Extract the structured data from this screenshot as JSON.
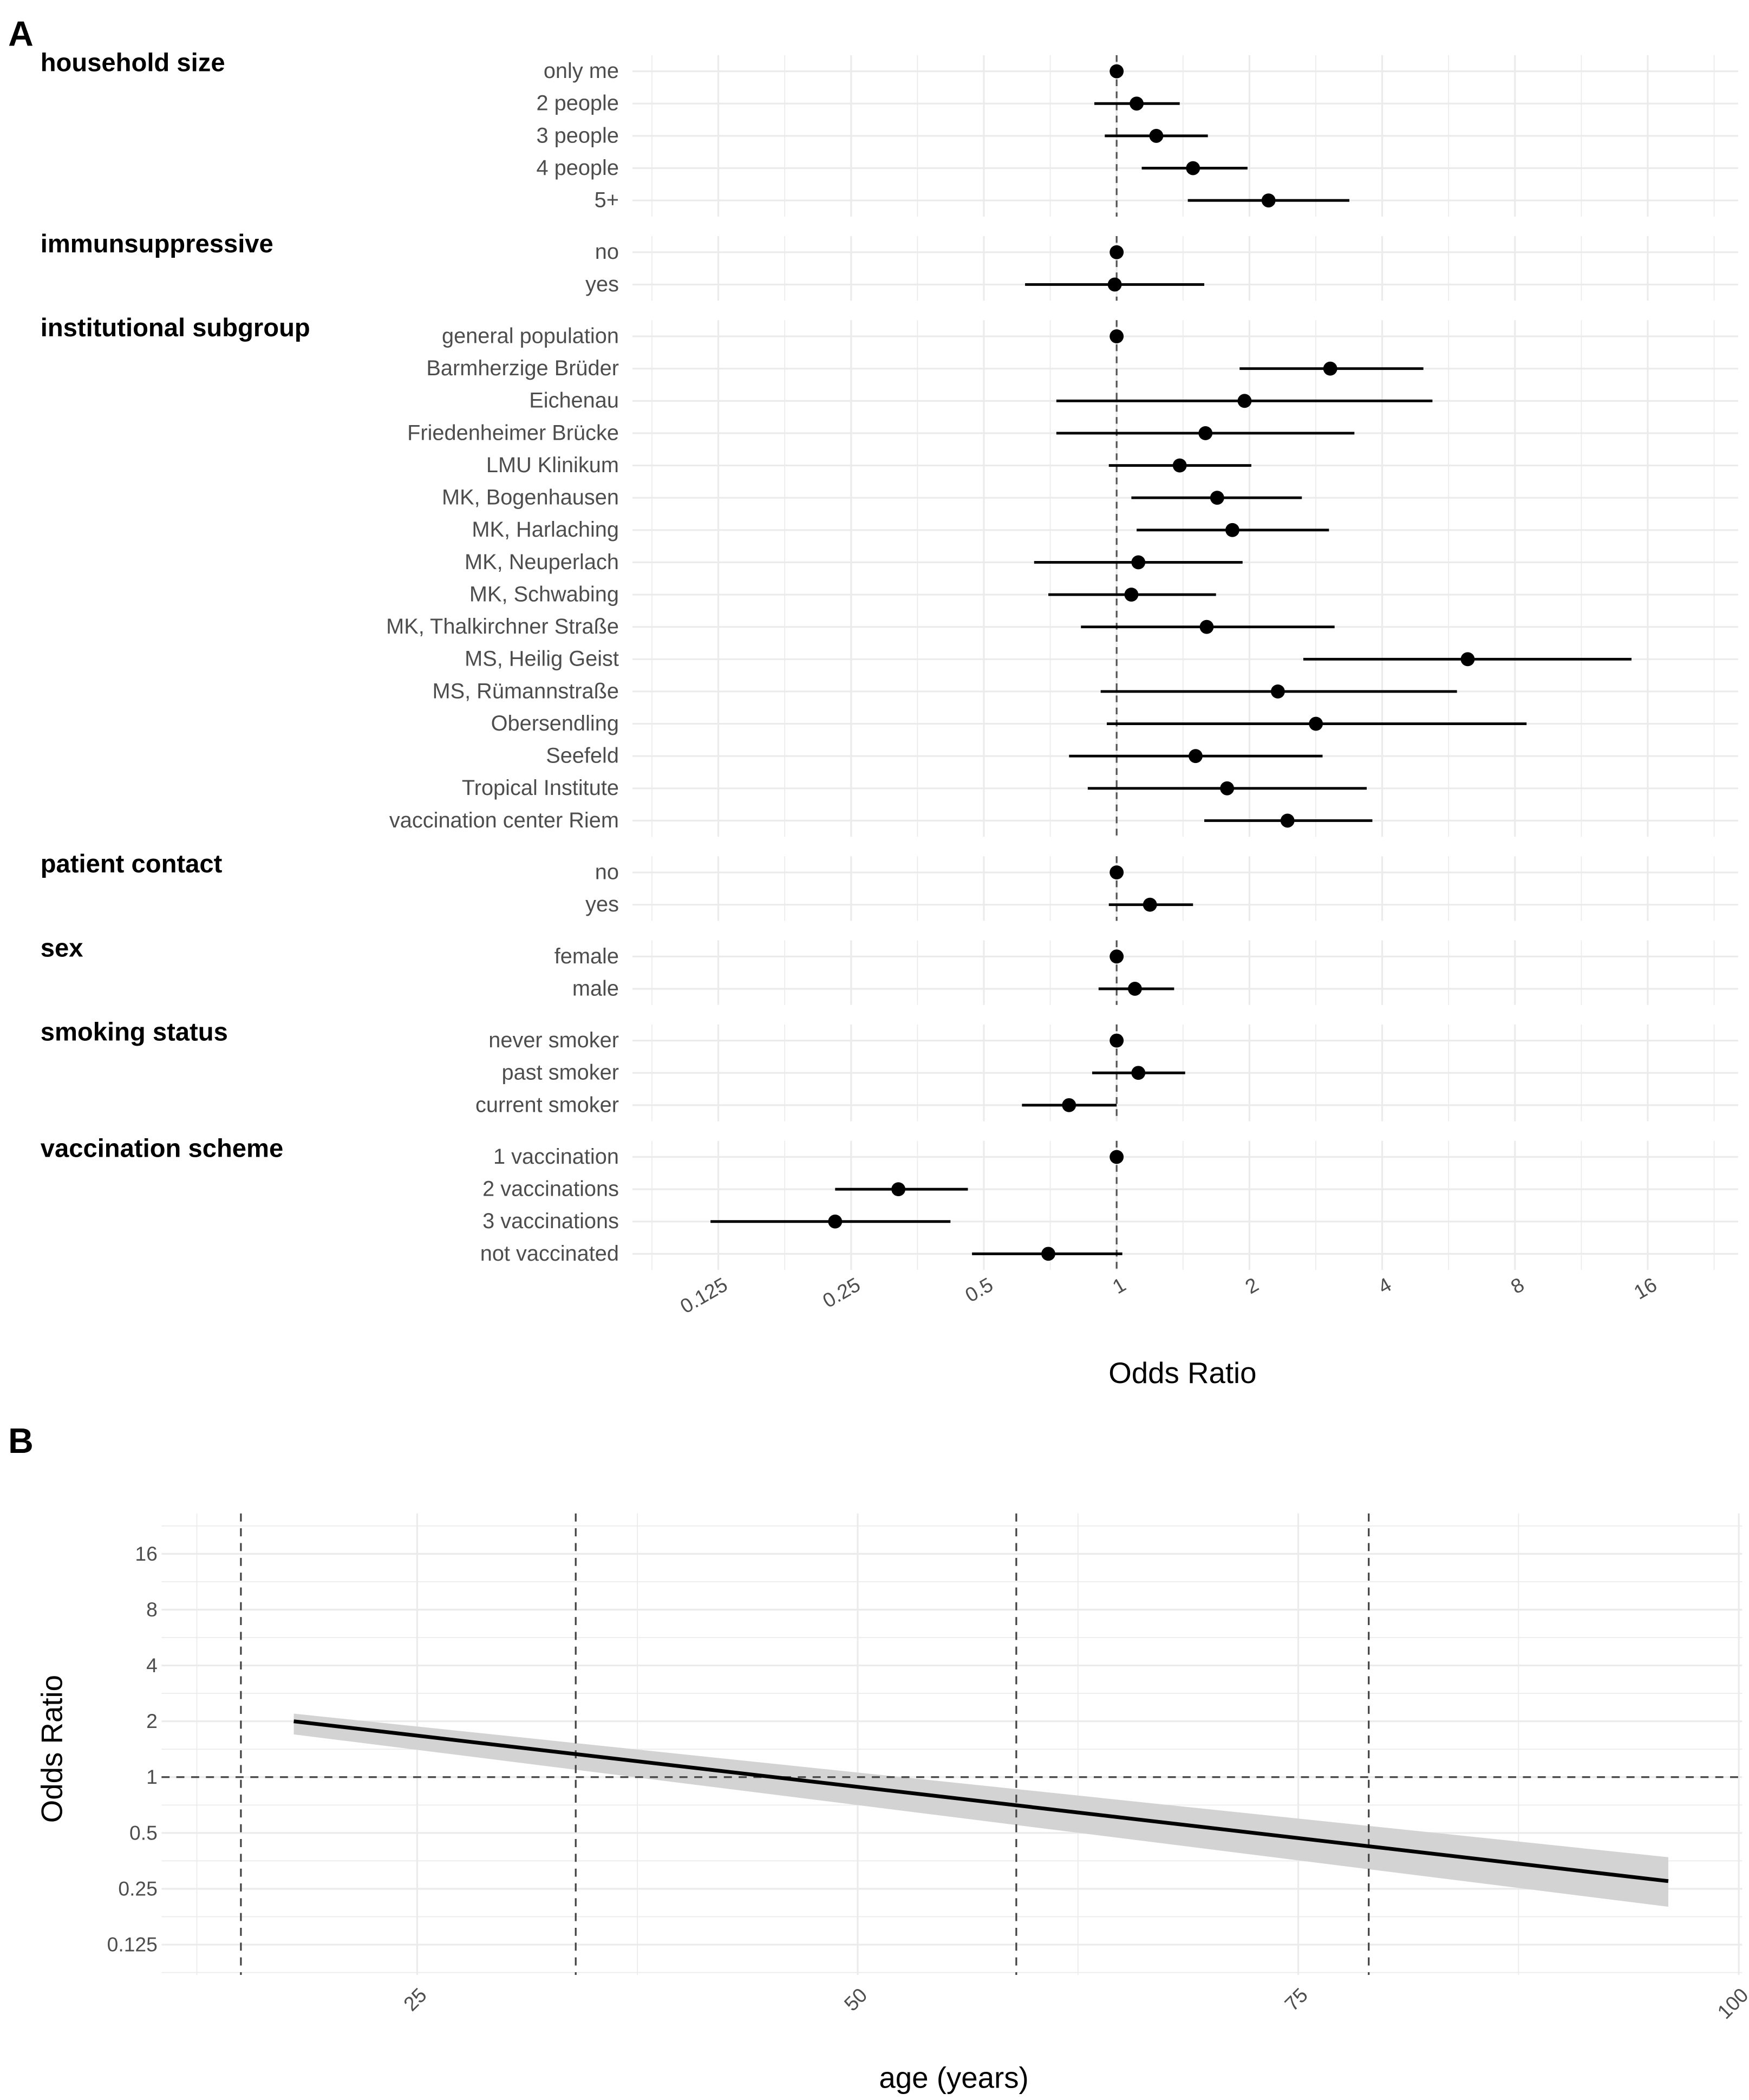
{
  "chart_data": [
    {
      "type": "forest",
      "panel_label": "A",
      "xlabel": "Odds Ratio",
      "xscale": "log2",
      "xticks": [
        "0.125",
        "0.25",
        "0.5",
        "1",
        "2",
        "4",
        "8",
        "16"
      ],
      "reference_line": 1,
      "groups": [
        {
          "name": "household size",
          "rows": [
            {
              "label": "only me",
              "or": 1,
              "lo": 1,
              "hi": 1
            },
            {
              "label": "2 people",
              "or": 1.11,
              "lo": 0.89,
              "hi": 1.39
            },
            {
              "label": "3 people",
              "or": 1.23,
              "lo": 0.94,
              "hi": 1.61
            },
            {
              "label": "4 people",
              "or": 1.49,
              "lo": 1.14,
              "hi": 1.98
            },
            {
              "label": "5+",
              "or": 2.21,
              "lo": 1.45,
              "hi": 3.37
            }
          ]
        },
        {
          "name": "immunsuppressive",
          "rows": [
            {
              "label": "no",
              "or": 1,
              "lo": 1,
              "hi": 1
            },
            {
              "label": "yes",
              "or": 0.99,
              "lo": 0.62,
              "hi": 1.58
            }
          ]
        },
        {
          "name": "institutional subgroup",
          "rows": [
            {
              "label": "general population",
              "or": 1,
              "lo": 1,
              "hi": 1
            },
            {
              "label": "Barmherzige Brüder",
              "or": 3.05,
              "lo": 1.9,
              "hi": 4.96
            },
            {
              "label": "Eichenau",
              "or": 1.95,
              "lo": 0.73,
              "hi": 5.2
            },
            {
              "label": "Friedenheimer Brücke",
              "or": 1.59,
              "lo": 0.73,
              "hi": 3.46
            },
            {
              "label": "LMU Klinikum",
              "or": 1.39,
              "lo": 0.96,
              "hi": 2.02
            },
            {
              "label": "MK, Bogenhausen",
              "or": 1.69,
              "lo": 1.08,
              "hi": 2.63
            },
            {
              "label": "MK, Harlaching",
              "or": 1.83,
              "lo": 1.11,
              "hi": 3.03
            },
            {
              "label": "MK, Neuperlach",
              "or": 1.12,
              "lo": 0.65,
              "hi": 1.93
            },
            {
              "label": "MK, Schwabing",
              "or": 1.08,
              "lo": 0.7,
              "hi": 1.68
            },
            {
              "label": "MK, Thalkirchner Straße",
              "or": 1.6,
              "lo": 0.83,
              "hi": 3.12
            },
            {
              "label": "MS, Heilig Geist",
              "or": 6.25,
              "lo": 2.65,
              "hi": 14.7
            },
            {
              "label": "MS, Rümannstraße",
              "or": 2.32,
              "lo": 0.92,
              "hi": 5.91
            },
            {
              "label": "Obersendling",
              "or": 2.83,
              "lo": 0.95,
              "hi": 8.5
            },
            {
              "label": "Seefeld",
              "or": 1.51,
              "lo": 0.78,
              "hi": 2.93
            },
            {
              "label": "Tropical Institute",
              "or": 1.78,
              "lo": 0.86,
              "hi": 3.69
            },
            {
              "label": "vaccination center Riem",
              "or": 2.44,
              "lo": 1.58,
              "hi": 3.8
            }
          ]
        },
        {
          "name": "patient contact",
          "rows": [
            {
              "label": "no",
              "or": 1,
              "lo": 1,
              "hi": 1
            },
            {
              "label": "yes",
              "or": 1.19,
              "lo": 0.96,
              "hi": 1.49
            }
          ]
        },
        {
          "name": "sex",
          "rows": [
            {
              "label": "female",
              "or": 1,
              "lo": 1,
              "hi": 1
            },
            {
              "label": "male",
              "or": 1.1,
              "lo": 0.91,
              "hi": 1.35
            }
          ]
        },
        {
          "name": "smoking status",
          "rows": [
            {
              "label": "never smoker",
              "or": 1,
              "lo": 1,
              "hi": 1
            },
            {
              "label": "past smoker",
              "or": 1.12,
              "lo": 0.88,
              "hi": 1.43
            },
            {
              "label": "current smoker",
              "or": 0.78,
              "lo": 0.61,
              "hi": 1.0
            }
          ]
        },
        {
          "name": "vaccination scheme",
          "rows": [
            {
              "label": "1 vaccination",
              "or": 1,
              "lo": 1,
              "hi": 1
            },
            {
              "label": "2 vaccinations",
              "or": 0.32,
              "lo": 0.23,
              "hi": 0.46
            },
            {
              "label": "3 vaccinations",
              "or": 0.23,
              "lo": 0.12,
              "hi": 0.42
            },
            {
              "label": "not vaccinated",
              "or": 0.7,
              "lo": 0.47,
              "hi": 1.03
            }
          ]
        }
      ]
    },
    {
      "type": "line",
      "panel_label": "B",
      "xlabel": "age (years)",
      "ylabel": "Odds Ratio",
      "xticks": [
        "25",
        "50",
        "75",
        "100"
      ],
      "yticks": [
        "0.125",
        "0.25",
        "0.5",
        "1",
        "2",
        "4",
        "8",
        "16"
      ],
      "yscale": "log2",
      "xlim": [
        10.6,
        100
      ],
      "ylim": [
        0.09,
        24
      ],
      "reference_line_y": 1,
      "vertical_lines_x": [
        15,
        34,
        59,
        79
      ],
      "series": [
        {
          "name": "fit",
          "x": [
            18,
            96
          ],
          "y": [
            2.0,
            0.275
          ],
          "ci_lo": [
            1.7,
            0.2
          ],
          "ci_hi": [
            2.2,
            0.37
          ]
        }
      ]
    }
  ]
}
